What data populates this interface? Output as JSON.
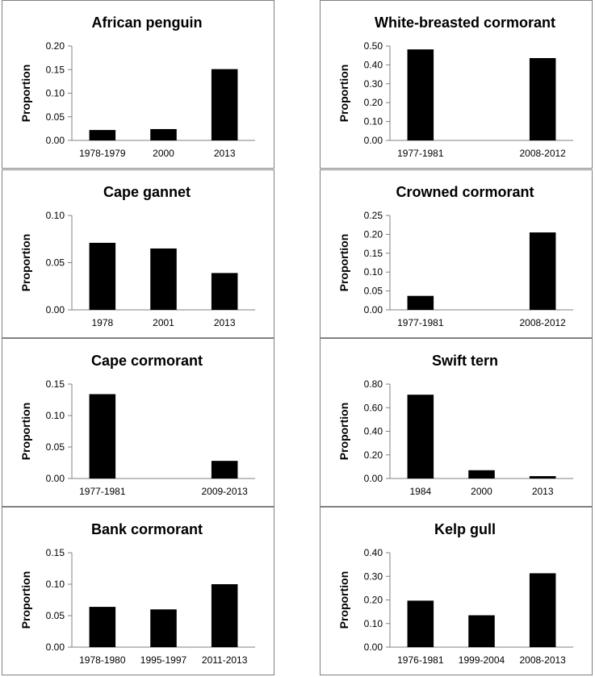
{
  "chart_data": [
    {
      "type": "bar",
      "title": "African penguin",
      "ylabel": "Proportion",
      "xlabel": "",
      "categories": [
        "1978-1979",
        "2000",
        "2013"
      ],
      "values": [
        0.022,
        0.024,
        0.151
      ],
      "ylim": [
        0,
        0.2
      ],
      "yticks": [
        "0.00",
        "0.05",
        "0.10",
        "0.15",
        "0.20"
      ],
      "grid": false
    },
    {
      "type": "bar",
      "title": "White-breasted cormorant",
      "ylabel": "Proportion",
      "xlabel": "",
      "categories": [
        "1977-1981",
        "",
        "2008-2012"
      ],
      "values": [
        0.482,
        null,
        0.436
      ],
      "ylim": [
        0,
        0.5
      ],
      "yticks": [
        "0.00",
        "0.10",
        "0.20",
        "0.30",
        "0.40",
        "0.50"
      ],
      "grid": false
    },
    {
      "type": "bar",
      "title": "Cape gannet",
      "ylabel": "Proportion",
      "xlabel": "",
      "categories": [
        "1978",
        "2001",
        "2013"
      ],
      "values": [
        0.071,
        0.065,
        0.039
      ],
      "ylim": [
        0,
        0.1
      ],
      "yticks": [
        "0.00",
        "0.05",
        "0.10"
      ],
      "grid": false
    },
    {
      "type": "bar",
      "title": "Crowned cormorant",
      "ylabel": "Proportion",
      "xlabel": "",
      "categories": [
        "1977-1981",
        "",
        "2008-2012"
      ],
      "values": [
        0.037,
        null,
        0.205
      ],
      "ylim": [
        0,
        0.25
      ],
      "yticks": [
        "0.00",
        "0.05",
        "0.10",
        "0.15",
        "0.20",
        "0.25"
      ],
      "grid": false
    },
    {
      "type": "bar",
      "title": "Cape cormorant",
      "ylabel": "Proportion",
      "xlabel": "",
      "categories": [
        "1977-1981",
        "",
        "2009-2013"
      ],
      "values": [
        0.134,
        null,
        0.028
      ],
      "ylim": [
        0,
        0.15
      ],
      "yticks": [
        "0.00",
        "0.05",
        "0.10",
        "0.15"
      ],
      "grid": false
    },
    {
      "type": "bar",
      "title": "Swift tern",
      "ylabel": "Proportion",
      "xlabel": "",
      "categories": [
        "1984",
        "2000",
        "2013"
      ],
      "values": [
        0.71,
        0.07,
        0.02
      ],
      "ylim": [
        0,
        0.8
      ],
      "yticks": [
        "0.00",
        "0.20",
        "0.40",
        "0.60",
        "0.80"
      ],
      "grid": false
    },
    {
      "type": "bar",
      "title": "Bank cormorant",
      "ylabel": "Proportion",
      "xlabel": "",
      "categories": [
        "1978-1980",
        "1995-1997",
        "2011-2013"
      ],
      "values": [
        0.064,
        0.06,
        0.1
      ],
      "ylim": [
        0,
        0.15
      ],
      "yticks": [
        "0.00",
        "0.05",
        "0.10",
        "0.15"
      ],
      "grid": false
    },
    {
      "type": "bar",
      "title": "Kelp gull",
      "ylabel": "Proportion",
      "xlabel": "",
      "categories": [
        "1976-1981",
        "1999-2004",
        "2008-2013"
      ],
      "values": [
        0.197,
        0.135,
        0.313
      ],
      "ylim": [
        0,
        0.4
      ],
      "yticks": [
        "0.00",
        "0.10",
        "0.20",
        "0.30",
        "0.40"
      ],
      "grid": false
    }
  ],
  "colors": {
    "bar": "#000000",
    "axis": "#808080",
    "panel_border": "#808080"
  }
}
